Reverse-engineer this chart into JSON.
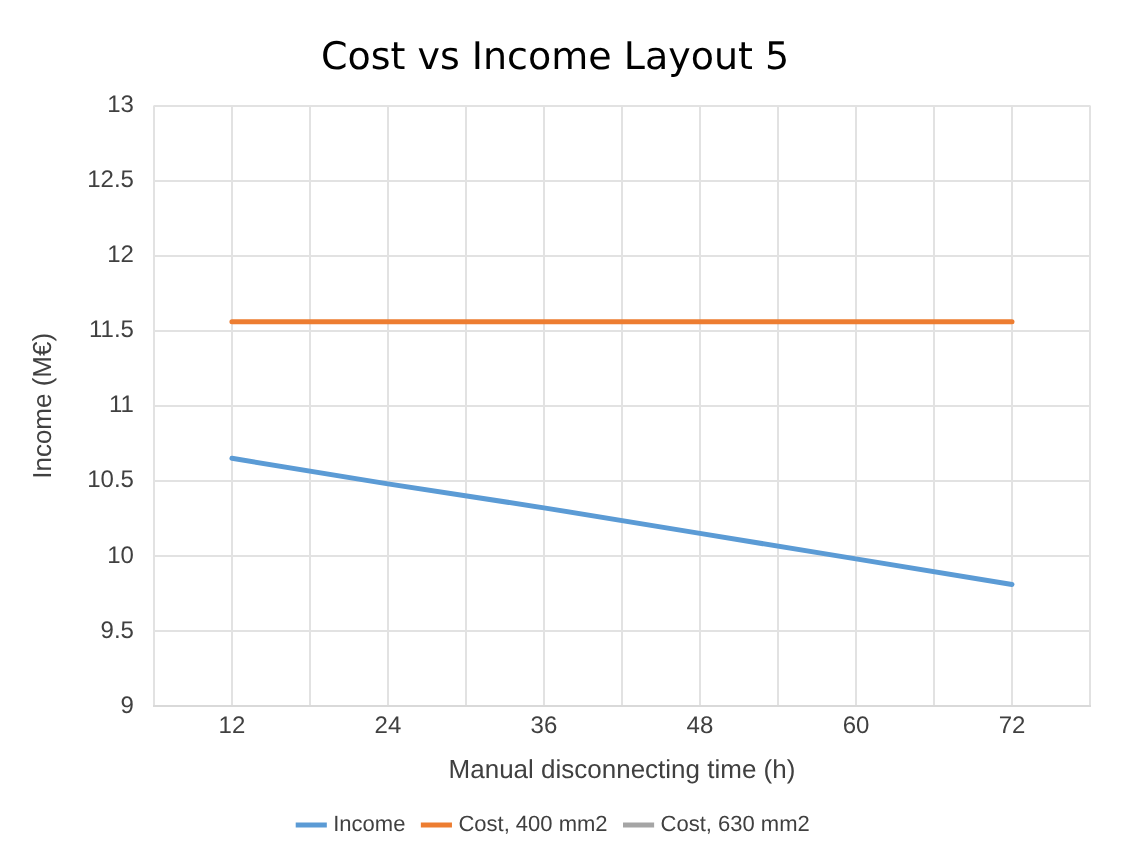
{
  "chart_data": {
    "type": "line",
    "title": "Cost vs Income Layout 5",
    "xlabel": "Manual disconnecting time (h)",
    "ylabel": "Income (M€)",
    "x": [
      12,
      24,
      36,
      48,
      60,
      72
    ],
    "series": [
      {
        "name": "Income",
        "color": "#5b9bd5",
        "values": [
          10.65,
          10.48,
          10.32,
          10.15,
          9.98,
          9.81
        ]
      },
      {
        "name": "Cost, 400 mm2",
        "color": "#ed7d31",
        "values": [
          11.56,
          11.56,
          11.56,
          11.56,
          11.56,
          11.56
        ]
      },
      {
        "name": "Cost, 630 mm2",
        "color": "#a5a5a5",
        "values": [
          null,
          null,
          null,
          null,
          null,
          null
        ]
      }
    ],
    "xlim": [
      6,
      78
    ],
    "xticks": [
      {
        "value": 6,
        "label": null
      },
      12,
      {
        "value": 18,
        "label": null
      },
      24,
      {
        "value": 30,
        "label": null
      },
      36,
      {
        "value": 42,
        "label": null
      },
      48,
      {
        "value": 54,
        "label": null
      },
      60,
      {
        "value": 66,
        "label": null
      },
      72,
      {
        "value": 78,
        "label": null
      }
    ],
    "ylim": [
      9,
      13
    ],
    "yticks": [
      9,
      9.5,
      10,
      10.5,
      11,
      11.5,
      12,
      12.5,
      13
    ],
    "grid": true,
    "legend": "bottom",
    "marker": "none",
    "line_style": "solid"
  }
}
